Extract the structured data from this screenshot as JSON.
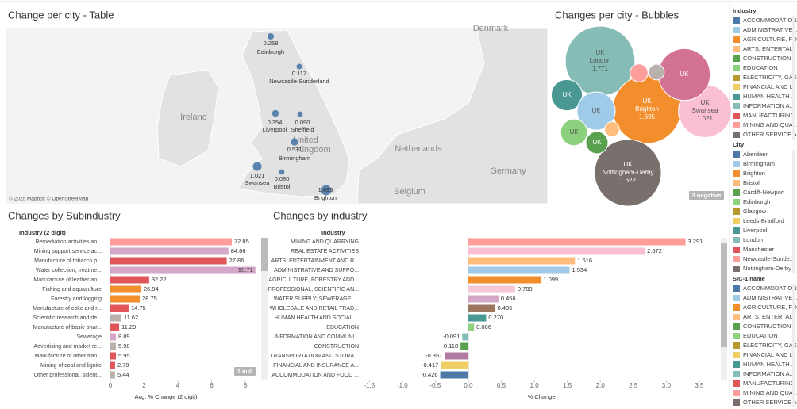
{
  "chart_data": [
    {
      "type": "map",
      "title": "Change per city - Table",
      "attribution": "© 2025 Mapbox © OpenStreetMap",
      "places": [
        "Denmark",
        "Ireland",
        "United",
        "Kingdom",
        "Netherlands",
        "Germany",
        "Belgium"
      ],
      "categories": [
        "Edinburgh",
        "Newcastle-Sunderland",
        "Liverpool",
        "Sheffield",
        "Birmingham",
        "Swansea",
        "Bristol",
        "Brighton"
      ],
      "values": [
        0.258,
        0.117,
        0.354,
        0.09,
        0.531,
        1.021,
        0.08,
        1.695
      ],
      "value_labels": [
        "0.258",
        "0.117",
        "0.354",
        "0.090",
        "0.531",
        "1.021",
        "0.080",
        "1.695"
      ],
      "color": "#4e79a7"
    },
    {
      "type": "bubble",
      "title": "Changes per city - Bubbles",
      "country": "UK",
      "badge": "3 negative",
      "categories": [
        "London",
        "Brighton",
        "Nottingham-Derby",
        "Swansea",
        null,
        "Liverpool",
        "Birmingham",
        "Edinburgh",
        "Cardiff-Newport",
        "Newcastle-Sunderland",
        "Sheffield",
        "Bristol"
      ],
      "values": [
        1.771,
        1.695,
        1.622,
        1.021,
        0.98,
        0.354,
        0.531,
        0.258,
        0.18,
        0.117,
        0.09,
        0.08
      ],
      "colors": [
        "#86bcb6",
        "#f28e2b",
        "#79706e",
        "#fabfd2",
        "#d37295",
        "#499894",
        "#a0cbe8",
        "#8cd17d",
        "#59a14f",
        "#ff9d9a",
        "#bab0ac",
        "#ffbe7d"
      ]
    },
    {
      "type": "bar",
      "title": "Changes by Subindustry",
      "header": "Industry (2 digit)",
      "x_label": "Avg. % Change (2 digit)",
      "badge": "1 null",
      "categories": [
        "Remediation activities an...",
        "Mining support service ac...",
        "Manufacture of tobacco p...",
        "Water collection, treatme...",
        "Manufacture of leather an...",
        "Fishing and aquaculture",
        "Forestry and logging",
        "Manufacture of coke and r...",
        "Scientific research and de...",
        "Manufacture of basic phar...",
        "Sewerage",
        "Advertising and market re...",
        "Manufacture of other tran...",
        "Mining of coal and lignite",
        "Other professional, scient..."
      ],
      "values": [
        7.2,
        7.0,
        6.9,
        8.6,
        2.3,
        1.83,
        1.74,
        1.08,
        0.66,
        0.52,
        0.33,
        0.33,
        0.33,
        0.28,
        0.28
      ],
      "label_values": [
        72.85,
        84.66,
        27.86,
        90.71,
        32.22,
        26.94,
        28.75,
        14.75,
        11.62,
        11.29,
        8.89,
        5.98,
        5.95,
        2.79,
        5.44
      ],
      "colors": [
        "#ff9d9a",
        "#d4a6c8",
        "#e15759",
        "#d4a6c8",
        "#e15759",
        "#f28e2b",
        "#f28e2b",
        "#e15759",
        "#bab0ac",
        "#e15759",
        "#d4a6c8",
        "#bab0ac",
        "#e15759",
        "#e15759",
        "#bab0ac"
      ],
      "xlim": [
        0,
        8.8
      ],
      "xticks": [
        0,
        2,
        4,
        6,
        8
      ]
    },
    {
      "type": "bar",
      "title": "Changes by industry",
      "header": "Industry",
      "x_label": "% Change",
      "categories": [
        "MINING AND QUARRYING",
        "REAL ESTATE ACTIVITIES",
        "ARTS, ENTERTAINMENT AND R...",
        "ADMINISTRATIVE AND SUPPO...",
        "AGRICULTURE, FORESTRY AND...",
        "PROFESSIONAL, SCIENTIFIC AN...",
        "WATER SUPPLY; SEWERAGE, ...",
        "WHOLESALE AND RETAIL TRAD...",
        "HUMAN HEALTH AND SOCIAL ...",
        "EDUCATION",
        "INFORMATION AND COMMUNI...",
        "CONSTRUCTION",
        "TRANSPORTATION AND STORA...",
        "FINANCIAL AND INSURANCE A...",
        "ACCOMMODATION AND FOOD ..."
      ],
      "values": [
        3.291,
        2.672,
        1.616,
        1.534,
        1.099,
        0.709,
        0.456,
        0.405,
        0.27,
        0.086,
        -0.091,
        -0.118,
        -0.357,
        -0.417,
        -0.426
      ],
      "value_labels": [
        "3.291",
        "2.672",
        "1.616",
        "1.534",
        "1.099",
        "0.709",
        "0.456",
        "0.405",
        "0.270",
        "0.086",
        "-0.091",
        "-0.118",
        "-0.357",
        "-0.417",
        "-0.426"
      ],
      "colors": [
        "#ff9d9a",
        "#fabfd2",
        "#ffbe7d",
        "#a0cbe8",
        "#f28e2b",
        "#f6c7d6",
        "#d4a6c8",
        "#9d7660",
        "#499894",
        "#8cd17d",
        "#86bcb6",
        "#59a14f",
        "#b07aa1",
        "#f1ce63",
        "#4e79a7"
      ],
      "xlim": [
        -1.66,
        3.79
      ],
      "xticks": [
        -1.5,
        {
          "value": -1,
          "label": "-1.0"
        },
        -0.5,
        {
          "value": 0,
          "label": "0.0"
        },
        0.5,
        {
          "value": 1,
          "label": "1.0"
        },
        1.5,
        {
          "value": 2,
          "label": "2.0"
        },
        2.5,
        {
          "value": 3,
          "label": "3.0"
        },
        3.5
      ]
    }
  ],
  "legends": [
    {
      "title": "Industry",
      "items": [
        {
          "label": "ACCOMMODATION...",
          "color": "#4e79a7"
        },
        {
          "label": "ADMINISTRATIVE...",
          "color": "#a0cbe8"
        },
        {
          "label": "AGRICULTURE, FO...",
          "color": "#f28e2b"
        },
        {
          "label": "ARTS, ENTERTAI...",
          "color": "#ffbe7d"
        },
        {
          "label": "CONSTRUCTION",
          "color": "#59a14f"
        },
        {
          "label": "EDUCATION",
          "color": "#8cd17d"
        },
        {
          "label": "ELECTRICITY, GAS...",
          "color": "#b6992d"
        },
        {
          "label": "FINANCIAL AND I...",
          "color": "#f1ce63"
        },
        {
          "label": "HUMAN HEALTH ...",
          "color": "#499894"
        },
        {
          "label": "INFORMATION A...",
          "color": "#86bcb6"
        },
        {
          "label": "MANUFACTURING",
          "color": "#e15759"
        },
        {
          "label": "MINING AND QUA...",
          "color": "#ff9d9a"
        },
        {
          "label": "OTHER SERVICE A...",
          "color": "#79706e"
        }
      ]
    },
    {
      "title": "City",
      "items": [
        {
          "label": "Aberdeen",
          "color": "#4e79a7"
        },
        {
          "label": "Birmingham",
          "color": "#a0cbe8"
        },
        {
          "label": "Brighton",
          "color": "#f28e2b"
        },
        {
          "label": "Bristol",
          "color": "#ffbe7d"
        },
        {
          "label": "Cardiff-Newport",
          "color": "#59a14f"
        },
        {
          "label": "Edinburgh",
          "color": "#8cd17d"
        },
        {
          "label": "Glasgow",
          "color": "#b6992d"
        },
        {
          "label": "Leeds-Bradford",
          "color": "#f1ce63"
        },
        {
          "label": "Liverpool",
          "color": "#499894"
        },
        {
          "label": "London",
          "color": "#86bcb6"
        },
        {
          "label": "Manchester",
          "color": "#e15759"
        },
        {
          "label": "Newcastle-Sunde...",
          "color": "#ff9d9a"
        },
        {
          "label": "Nottingham-Derby",
          "color": "#79706e"
        }
      ]
    },
    {
      "title": "SIC-1 name",
      "items": [
        {
          "label": "ACCOMMODATION...",
          "color": "#4e79a7"
        },
        {
          "label": "ADMINISTRATIVE...",
          "color": "#a0cbe8"
        },
        {
          "label": "AGRICULTURE, FO...",
          "color": "#f28e2b"
        },
        {
          "label": "ARTS, ENTERTAI...",
          "color": "#ffbe7d"
        },
        {
          "label": "CONSTRUCTION",
          "color": "#59a14f"
        },
        {
          "label": "EDUCATION",
          "color": "#8cd17d"
        },
        {
          "label": "ELECTRICITY, GAS...",
          "color": "#b6992d"
        },
        {
          "label": "FINANCIAL AND I...",
          "color": "#f1ce63"
        },
        {
          "label": "HUMAN HEALTH ...",
          "color": "#499894"
        },
        {
          "label": "INFORMATION A...",
          "color": "#86bcb6"
        },
        {
          "label": "MANUFACTURING",
          "color": "#e15759"
        },
        {
          "label": "MINING AND QUA...",
          "color": "#ff9d9a"
        },
        {
          "label": "OTHER SERVICE A...",
          "color": "#79706e"
        }
      ]
    }
  ]
}
